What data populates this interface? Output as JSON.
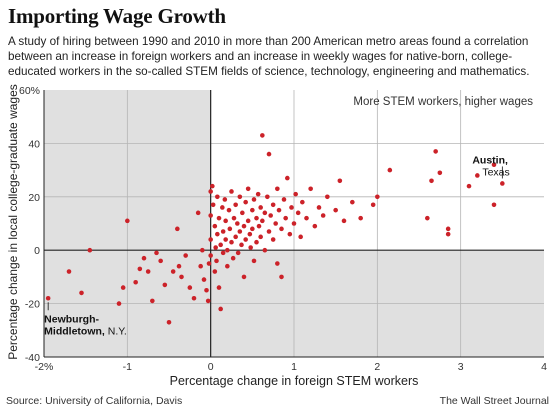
{
  "header": {
    "title": "Importing Wage Growth",
    "subtitle": "A study of hiring between 1990 and 2010 in more than 200 American metro areas found a correlation between an increase in foreign workers and an increase in weekly wages for native-born, college-educated workers in the so-called STEM fields of science, technology, engineering and mathematics."
  },
  "footer": {
    "source": "Source: University of California, Davis",
    "credit": "The Wall Street Journal"
  },
  "chart_data": {
    "type": "scatter",
    "xlabel": "Percentage change in foreign STEM workers",
    "ylabel": "Percentage change in local college-graduate wages",
    "xlim": [
      -2,
      4
    ],
    "ylim": [
      -40,
      60
    ],
    "x_ticks": [
      -2,
      -1,
      0,
      1,
      2,
      3,
      4
    ],
    "x_tick_labels": [
      "-2%",
      "-1",
      "0",
      "1",
      "2",
      "3",
      "4"
    ],
    "y_ticks": [
      -40,
      -20,
      0,
      20,
      40,
      60
    ],
    "y_tick_labels": [
      "-40",
      "-20",
      "0",
      "20",
      "40",
      "60%"
    ],
    "grid": true,
    "colors": {
      "points": "#cc2229",
      "shaded_quadrants": "#e0e0e0",
      "frame": "#222222"
    },
    "quadrant_label": "More STEM workers, higher wages",
    "annotations": [
      {
        "name": "Austin,",
        "detail": "Texas",
        "x": 3.5,
        "y": 25
      },
      {
        "name": "Newburgh-Middletown,",
        "detail": "N.Y.",
        "x": -1.95,
        "y": -18
      }
    ],
    "series": [
      {
        "points": [
          [
            -1.95,
            -18
          ],
          [
            -1.7,
            -8
          ],
          [
            -1.55,
            -16
          ],
          [
            -1.45,
            0
          ],
          [
            -1.1,
            -20
          ],
          [
            -1.0,
            11
          ],
          [
            -1.05,
            -14
          ],
          [
            -0.9,
            -12
          ],
          [
            -0.85,
            -7
          ],
          [
            -0.8,
            -3
          ],
          [
            -0.75,
            -8
          ],
          [
            -0.7,
            -19
          ],
          [
            -0.65,
            -1
          ],
          [
            -0.6,
            -4
          ],
          [
            -0.55,
            -13
          ],
          [
            -0.5,
            -27
          ],
          [
            -0.45,
            -8
          ],
          [
            -0.4,
            8
          ],
          [
            -0.38,
            -6
          ],
          [
            -0.35,
            -10
          ],
          [
            -0.3,
            -2
          ],
          [
            -0.25,
            -14
          ],
          [
            -0.2,
            -18
          ],
          [
            -0.15,
            14
          ],
          [
            -0.12,
            -6
          ],
          [
            -0.1,
            0
          ],
          [
            -0.08,
            -11
          ],
          [
            -0.05,
            -15
          ],
          [
            -0.03,
            -19
          ],
          [
            -0.02,
            -5
          ],
          [
            0.0,
            22
          ],
          [
            0.0,
            13
          ],
          [
            0.0,
            4
          ],
          [
            0.0,
            -2
          ],
          [
            0.02,
            24
          ],
          [
            0.03,
            17
          ],
          [
            0.05,
            9
          ],
          [
            0.05,
            -8
          ],
          [
            0.06,
            1
          ],
          [
            0.07,
            -4
          ],
          [
            0.08,
            20
          ],
          [
            0.08,
            6
          ],
          [
            0.1,
            -14
          ],
          [
            0.1,
            12
          ],
          [
            0.12,
            2
          ],
          [
            0.12,
            -22
          ],
          [
            0.14,
            16
          ],
          [
            0.15,
            7
          ],
          [
            0.15,
            -1
          ],
          [
            0.17,
            19
          ],
          [
            0.18,
            11
          ],
          [
            0.18,
            4
          ],
          [
            0.2,
            0
          ],
          [
            0.2,
            -6
          ],
          [
            0.22,
            15
          ],
          [
            0.23,
            8
          ],
          [
            0.25,
            22
          ],
          [
            0.25,
            3
          ],
          [
            0.27,
            -3
          ],
          [
            0.28,
            12
          ],
          [
            0.3,
            17
          ],
          [
            0.3,
            5
          ],
          [
            0.32,
            10
          ],
          [
            0.33,
            -1
          ],
          [
            0.35,
            20
          ],
          [
            0.35,
            7
          ],
          [
            0.37,
            2
          ],
          [
            0.38,
            14
          ],
          [
            0.4,
            9
          ],
          [
            0.4,
            -10
          ],
          [
            0.42,
            18
          ],
          [
            0.42,
            4
          ],
          [
            0.45,
            11
          ],
          [
            0.45,
            23
          ],
          [
            0.47,
            6
          ],
          [
            0.48,
            1
          ],
          [
            0.5,
            15
          ],
          [
            0.5,
            8
          ],
          [
            0.52,
            19
          ],
          [
            0.52,
            -4
          ],
          [
            0.55,
            12
          ],
          [
            0.55,
            3
          ],
          [
            0.57,
            21
          ],
          [
            0.58,
            9
          ],
          [
            0.6,
            16
          ],
          [
            0.6,
            5
          ],
          [
            0.62,
            43
          ],
          [
            0.62,
            11
          ],
          [
            0.65,
            14
          ],
          [
            0.65,
            0
          ],
          [
            0.68,
            20
          ],
          [
            0.7,
            7
          ],
          [
            0.7,
            36
          ],
          [
            0.72,
            13
          ],
          [
            0.75,
            17
          ],
          [
            0.75,
            4
          ],
          [
            0.78,
            10
          ],
          [
            0.8,
            23
          ],
          [
            0.8,
            -5
          ],
          [
            0.82,
            15
          ],
          [
            0.85,
            8
          ],
          [
            0.85,
            -10
          ],
          [
            0.88,
            19
          ],
          [
            0.9,
            12
          ],
          [
            0.92,
            27
          ],
          [
            0.95,
            6
          ],
          [
            0.97,
            16
          ],
          [
            1.0,
            10
          ],
          [
            1.02,
            21
          ],
          [
            1.05,
            14
          ],
          [
            1.08,
            5
          ],
          [
            1.1,
            18
          ],
          [
            1.15,
            12
          ],
          [
            1.2,
            23
          ],
          [
            1.25,
            9
          ],
          [
            1.3,
            16
          ],
          [
            1.35,
            13
          ],
          [
            1.4,
            20
          ],
          [
            1.5,
            15
          ],
          [
            1.55,
            26
          ],
          [
            1.6,
            11
          ],
          [
            1.7,
            18
          ],
          [
            1.8,
            12
          ],
          [
            1.95,
            17
          ],
          [
            2.0,
            20
          ],
          [
            2.15,
            30
          ],
          [
            2.6,
            12
          ],
          [
            2.65,
            26
          ],
          [
            2.7,
            37
          ],
          [
            2.75,
            29
          ],
          [
            2.85,
            6
          ],
          [
            2.85,
            8
          ],
          [
            3.1,
            24
          ],
          [
            3.2,
            28
          ],
          [
            3.4,
            32
          ],
          [
            3.4,
            17
          ],
          [
            3.5,
            25
          ]
        ]
      }
    ]
  }
}
